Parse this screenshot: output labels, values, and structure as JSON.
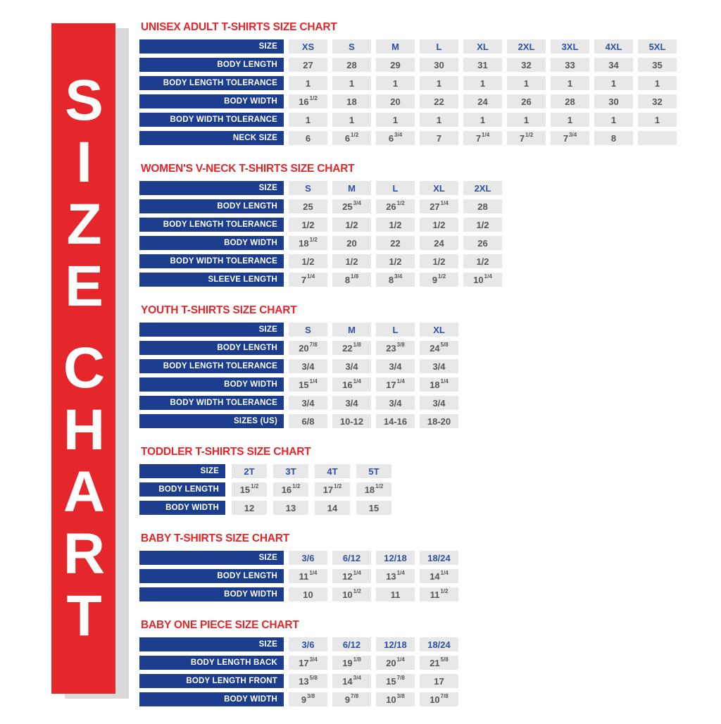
{
  "colors": {
    "banner_red": "#e5262b",
    "banner_shadow_gray": "#d9d9d9",
    "label_bar_navy": "#1c3d8e",
    "column_header_blue": "#2d51a3",
    "cell_gray": "#e8e8e8",
    "cell_text_gray": "#55565a",
    "title_red": "#e5262b"
  },
  "banner": {
    "words": [
      [
        "S",
        "I",
        "Z",
        "E"
      ],
      [
        "C",
        "H",
        "A",
        "R",
        "T"
      ]
    ]
  },
  "tables": [
    {
      "title": "UNISEX ADULT T-SHIRTS SIZE CHART",
      "header_label": "SIZE",
      "columns": [
        "XS",
        "S",
        "M",
        "L",
        "XL",
        "2XL",
        "3XL",
        "4XL",
        "5XL"
      ],
      "narrow": false,
      "rows": [
        {
          "label": "BODY LENGTH",
          "values": [
            "27",
            "28",
            "29",
            "30",
            "31",
            "32",
            "33",
            "34",
            "35"
          ]
        },
        {
          "label": "BODY LENGTH TOLERANCE",
          "values": [
            "1",
            "1",
            "1",
            "1",
            "1",
            "1",
            "1",
            "1",
            "1"
          ]
        },
        {
          "label": "BODY WIDTH",
          "values": [
            "16^1/2",
            "18",
            "20",
            "22",
            "24",
            "26",
            "28",
            "30",
            "32"
          ]
        },
        {
          "label": "BODY WIDTH TOLERANCE",
          "values": [
            "1",
            "1",
            "1",
            "1",
            "1",
            "1",
            "1",
            "1",
            "1"
          ]
        },
        {
          "label": "NECK SIZE",
          "values": [
            "6",
            "6^1/2",
            "6^3/4",
            "7",
            "7^1/4",
            "7^1/2",
            "7^3/4",
            "8",
            ""
          ]
        }
      ]
    },
    {
      "title": "WOMEN'S V-NECK T-SHIRTS SIZE CHART",
      "header_label": "SIZE",
      "columns": [
        "S",
        "M",
        "L",
        "XL",
        "2XL"
      ],
      "narrow": false,
      "rows": [
        {
          "label": "BODY LENGTH",
          "values": [
            "25",
            "25^3/4",
            "26^1/2",
            "27^1/4",
            "28"
          ]
        },
        {
          "label": "BODY LENGTH TOLERANCE",
          "values": [
            "1/2",
            "1/2",
            "1/2",
            "1/2",
            "1/2"
          ]
        },
        {
          "label": "BODY WIDTH",
          "values": [
            "18^1/2",
            "20",
            "22",
            "24",
            "26"
          ]
        },
        {
          "label": "BODY WIDTH TOLERANCE",
          "values": [
            "1/2",
            "1/2",
            "1/2",
            "1/2",
            "1/2"
          ]
        },
        {
          "label": "SLEEVE LENGTH",
          "values": [
            "7^1/4",
            "8^1/8",
            "8^3/4",
            "9^1/2",
            "10^1/4"
          ]
        }
      ]
    },
    {
      "title": "YOUTH T-SHIRTS SIZE CHART",
      "header_label": "SIZE",
      "columns": [
        "S",
        "M",
        "L",
        "XL"
      ],
      "narrow": false,
      "rows": [
        {
          "label": "BODY LENGTH",
          "values": [
            "20^7/8",
            "22^1/8",
            "23^3/8",
            "24^5/8"
          ]
        },
        {
          "label": "BODY LENGTH TOLERANCE",
          "values": [
            "3/4",
            "3/4",
            "3/4",
            "3/4"
          ]
        },
        {
          "label": "BODY WIDTH",
          "values": [
            "15^1/4",
            "16^1/4",
            "17^1/4",
            "18^1/4"
          ]
        },
        {
          "label": "BODY WIDTH TOLERANCE",
          "values": [
            "3/4",
            "3/4",
            "3/4",
            "3/4"
          ]
        },
        {
          "label": "SIZES (US)",
          "values": [
            "6/8",
            "10-12",
            "14-16",
            "18-20"
          ]
        }
      ]
    },
    {
      "title": "TODDLER T-SHIRTS SIZE CHART",
      "header_label": "SIZE",
      "columns": [
        "2T",
        "3T",
        "4T",
        "5T"
      ],
      "narrow": true,
      "rows": [
        {
          "label": "BODY LENGTH",
          "values": [
            "15^1/2",
            "16^1/2",
            "17^1/2",
            "18^1/2"
          ]
        },
        {
          "label": "BODY WIDTH",
          "values": [
            "12",
            "13",
            "14",
            "15"
          ]
        }
      ]
    },
    {
      "title": "BABY T-SHIRTS SIZE CHART",
      "header_label": "SIZE",
      "columns": [
        "3/6",
        "6/12",
        "12/18",
        "18/24"
      ],
      "narrow": false,
      "rows": [
        {
          "label": "BODY LENGTH",
          "values": [
            "11^1/4",
            "12^1/4",
            "13^1/4",
            "14^1/4"
          ]
        },
        {
          "label": "BODY WIDTH",
          "values": [
            "10",
            "10^1/2",
            "11",
            "11^1/2"
          ]
        }
      ]
    },
    {
      "title": "BABY ONE PIECE SIZE CHART",
      "header_label": "SIZE",
      "columns": [
        "3/6",
        "6/12",
        "12/18",
        "18/24"
      ],
      "narrow": false,
      "rows": [
        {
          "label": "BODY LENGTH BACK",
          "values": [
            "17^3/4",
            "19^1/8",
            "20^1/4",
            "21^5/8"
          ]
        },
        {
          "label": "BODY LENGTH FRONT",
          "values": [
            "13^5/8",
            "14^3/4",
            "15^7/8",
            "17"
          ]
        },
        {
          "label": "BODY WIDTH",
          "values": [
            "9^3/8",
            "9^7/8",
            "10^3/8",
            "10^7/8"
          ]
        }
      ]
    }
  ]
}
